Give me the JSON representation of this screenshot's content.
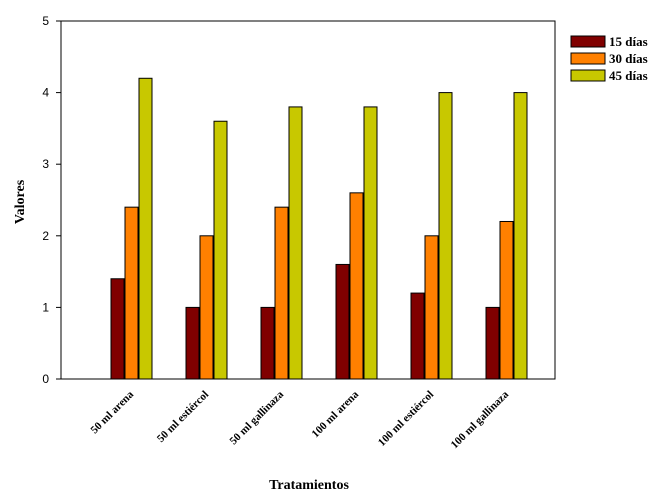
{
  "chart_data": {
    "type": "bar",
    "title": "",
    "xlabel": "Tratamientos",
    "ylabel": "Valores",
    "ylim": [
      0,
      5
    ],
    "yticks": [
      0,
      1,
      2,
      3,
      4,
      5
    ],
    "grid": false,
    "legend_position": "right",
    "categories": [
      "50 ml arena",
      "50 ml estiércol",
      "50 ml gallinaza",
      "100 ml arena",
      "100 ml estiércol",
      "100 ml gallinaza"
    ],
    "series": [
      {
        "name": "15 días",
        "color": "#800000",
        "values": [
          1.4,
          1.0,
          1.0,
          1.6,
          1.2,
          1.0
        ]
      },
      {
        "name": "30 días",
        "color": "#ff8000",
        "values": [
          2.4,
          2.0,
          2.4,
          2.6,
          2.0,
          2.2
        ]
      },
      {
        "name": "45 días",
        "color": "#c8c800",
        "values": [
          4.2,
          3.6,
          3.8,
          3.8,
          4.0,
          4.0
        ]
      }
    ]
  }
}
